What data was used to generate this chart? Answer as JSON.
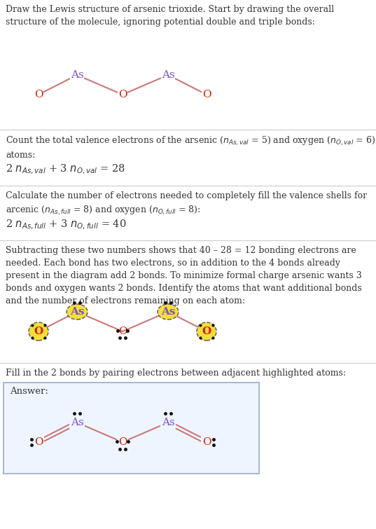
{
  "as_color": "#7b52c7",
  "o_color": "#cc2200",
  "bond_color": "#cc7777",
  "highlight_color": "#f5de3a",
  "highlight_border": "#555555",
  "dot_color": "#111111",
  "text_color": "#333333",
  "bg_color": "#ffffff",
  "sep_color": "#cccccc",
  "answer_border": "#99aacc",
  "answer_bg": "#eef5ff",
  "sec1_title": "Draw the Lewis structure of arsenic trioxide. Start by drawing the overall\nstructure of the molecule, ignoring potential double and triple bonds:",
  "sec2_title": "Count the total valence electrons of the arsenic ($n_{As,val}$ = 5) and oxygen ($n_{O,val}$ = 6)\natoms:",
  "sec2_formula": "2 $n_{As,val}$ + 3 $n_{O,val}$ = 28",
  "sec3_title": "Calculate the number of electrons needed to completely fill the valence shells for\narcenic ($n_{As,full}$ = 8) and oxygen ($n_{O,full}$ = 8):",
  "sec3_formula": "2 $n_{As,full}$ + 3 $n_{O,full}$ = 40",
  "sec4_title": "Subtracting these two numbers shows that 40 – 28 = 12 bonding electrons are\nneeded. Each bond has two electrons, so in addition to the 4 bonds already\npresent in the diagram add 2 bonds. To minimize formal charge arsenic wants 3\nbonds and oxygen wants 2 bonds. Identify the atoms that want additional bonds\nand the number of electrons remaining on each atom:",
  "sec5_title": "Fill in the 2 bonds by pairing electrons between adjacent highlighted atoms:",
  "answer_label": "Answer:"
}
